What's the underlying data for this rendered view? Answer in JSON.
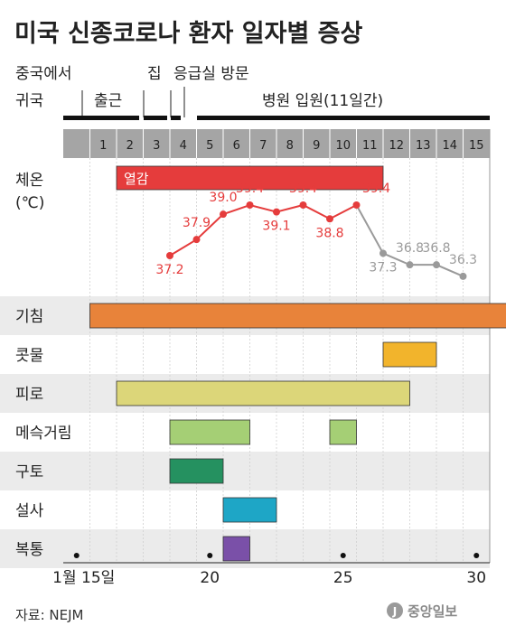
{
  "title": "미국 신종코로나 환자 일자별 증상",
  "events": [
    {
      "day": 1,
      "line1": "중국에서",
      "line2": "귀국"
    },
    {
      "day": 2,
      "label": "출근"
    },
    {
      "day": 4,
      "label": "집"
    },
    {
      "day": 5,
      "label": "응급실 방문"
    },
    {
      "day": 5,
      "label": "병원 입원(11일간)"
    }
  ],
  "days": [
    "1",
    "2",
    "3",
    "4",
    "5",
    "6",
    "7",
    "8",
    "9",
    "10",
    "11",
    "12",
    "13",
    "14",
    "15"
  ],
  "temperature": {
    "label_line1": "체온",
    "label_line2": "(℃)",
    "fever_label": "열감",
    "colors": {
      "high": "#e53c3c",
      "normal": "#9a9a9a"
    }
  },
  "chart_data": {
    "type": "line",
    "x": [
      4,
      5,
      6,
      7,
      8,
      9,
      10,
      11,
      12,
      13,
      14,
      15
    ],
    "y": [
      37.2,
      37.9,
      39.0,
      39.4,
      39.1,
      39.4,
      38.8,
      39.4,
      37.3,
      36.8,
      36.8,
      36.3
    ],
    "labels": [
      "37.2",
      "37.9",
      "39.0",
      "39.4",
      "39.1",
      "39.4",
      "38.8",
      "39.4",
      "37.3",
      "36.8",
      "36.8",
      "36.3"
    ],
    "symptoms": [
      {
        "name": "열감",
        "start": 2,
        "end": 11,
        "color": "#e53c3c"
      },
      {
        "name": "기침",
        "start": 1,
        "end": 16,
        "color": "#e8833a"
      },
      {
        "name": "콧물",
        "start": 12,
        "end": 13,
        "color": "#f2b42c"
      },
      {
        "name": "피로",
        "start": 2,
        "end": 12,
        "color": "#dcd679"
      },
      {
        "name": "메슥거림",
        "start": 4,
        "end": 6,
        "color": "#a5cf75"
      },
      {
        "name": "메슥거림",
        "start": 10,
        "end": 10,
        "color": "#a5cf75"
      },
      {
        "name": "구토",
        "start": 4,
        "end": 5,
        "color": "#259160"
      },
      {
        "name": "설사",
        "start": 6,
        "end": 7,
        "color": "#1ea6c6"
      },
      {
        "name": "복통",
        "start": 6,
        "end": 6,
        "color": "#7a50a8"
      }
    ]
  },
  "symptom_rows": [
    "기침",
    "콧물",
    "피로",
    "메슥거림",
    "구토",
    "설사",
    "복통"
  ],
  "date_axis": [
    {
      "day": 0,
      "label": "1월 15일"
    },
    {
      "day": 5,
      "label": "20"
    },
    {
      "day": 10,
      "label": "25"
    },
    {
      "day": 15,
      "label": "30"
    }
  ],
  "source": "자료: NEJM",
  "logo": "중앙일보"
}
